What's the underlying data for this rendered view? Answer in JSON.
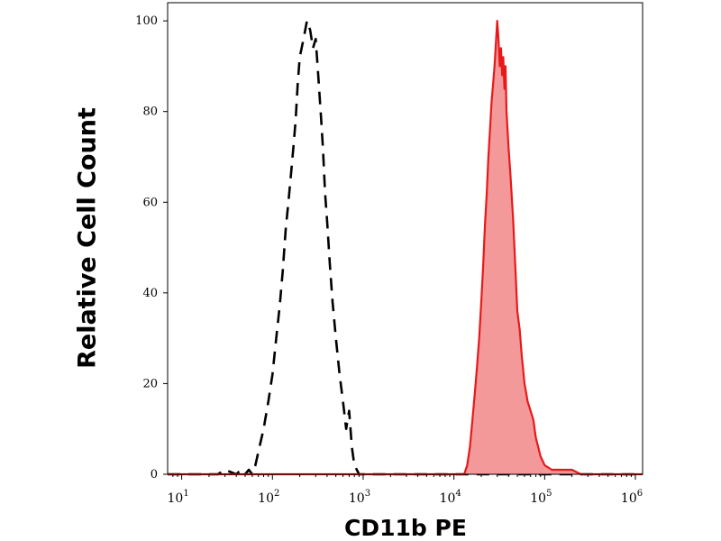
{
  "chart_data": {
    "type": "area",
    "xlabel": "CD11b PE",
    "ylabel": "Relative Cell Count",
    "x_scale": "log10",
    "xlim": [
      7,
      1200000
    ],
    "ylim": [
      0,
      104
    ],
    "y_ticks": [
      0,
      20,
      40,
      60,
      80,
      100
    ],
    "x_ticks": [
      {
        "value": 10,
        "base": "10",
        "exp": "1"
      },
      {
        "value": 100,
        "base": "10",
        "exp": "2"
      },
      {
        "value": 1000,
        "base": "10",
        "exp": "3"
      },
      {
        "value": 10000,
        "base": "10",
        "exp": "4"
      },
      {
        "value": 100000,
        "base": "10",
        "exp": "5"
      },
      {
        "value": 1000000,
        "base": "10",
        "exp": "6"
      }
    ],
    "grid": false,
    "series": [
      {
        "style": "dashed-outline",
        "color": "#000000",
        "x": [
          7,
          25,
          30,
          40,
          45,
          50,
          55,
          60,
          65,
          70,
          80,
          90,
          100,
          110,
          120,
          130,
          140,
          150,
          160,
          170,
          180,
          190,
          200,
          220,
          240,
          260,
          280,
          300,
          320,
          340,
          360,
          380,
          400,
          430,
          460,
          500,
          550,
          600,
          650,
          700,
          750,
          800,
          850,
          900,
          1000,
          2000,
          10000,
          1200000
        ],
        "y": [
          0,
          0,
          1,
          0,
          1,
          0,
          1,
          0,
          2,
          5,
          10,
          16,
          22,
          30,
          37,
          45,
          54,
          60,
          66,
          72,
          78,
          86,
          92,
          96,
          100,
          98,
          94,
          96,
          88,
          80,
          72,
          62,
          56,
          46,
          38,
          30,
          22,
          16,
          10,
          14,
          6,
          2,
          1,
          0,
          0,
          0,
          0,
          0
        ]
      },
      {
        "style": "filled",
        "color": "#e8191a",
        "fill": "#f4999a",
        "x": [
          7,
          10000,
          13000,
          14000,
          15000,
          16000,
          17000,
          18000,
          19000,
          20000,
          21000,
          22000,
          23000,
          24000,
          25000,
          26000,
          27000,
          28000,
          29000,
          30000,
          31000,
          32000,
          33000,
          34000,
          35000,
          36000,
          37000,
          38000,
          40000,
          42000,
          45000,
          48000,
          50000,
          53000,
          56000,
          60000,
          65000,
          70000,
          75000,
          80000,
          85000,
          90000,
          100000,
          120000,
          150000,
          200000,
          250000,
          300000,
          1200000
        ],
        "y": [
          0,
          0,
          0,
          2,
          6,
          12,
          18,
          24,
          30,
          38,
          46,
          55,
          62,
          70,
          76,
          82,
          86,
          90,
          95,
          100,
          96,
          90,
          94,
          88,
          92,
          85,
          90,
          80,
          72,
          66,
          56,
          44,
          36,
          32,
          26,
          20,
          16,
          14,
          12,
          8,
          6,
          4,
          2,
          1,
          1,
          1,
          0,
          0,
          0
        ]
      }
    ]
  }
}
